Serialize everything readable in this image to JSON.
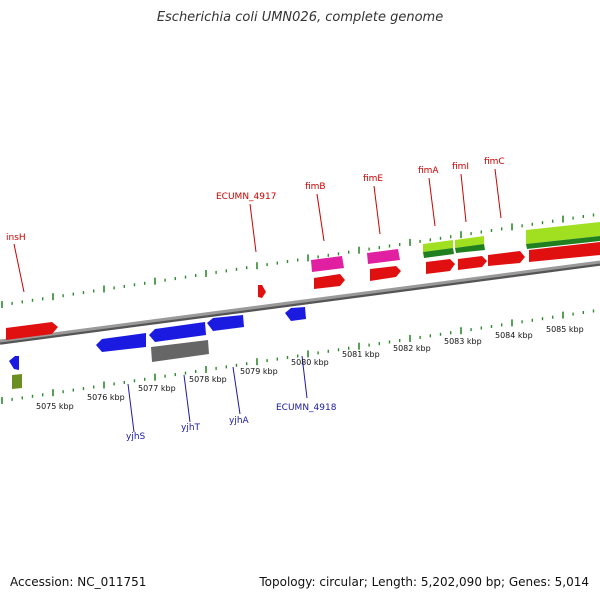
{
  "title": "Escherichia coli UMN026, complete genome",
  "footer": {
    "accession": "Accession: NC_011751",
    "summary": "Topology: circular; Length: 5,202,090 bp; Genes: 5,014"
  },
  "colors": {
    "backbone": "#8a8a8a",
    "tick": "#2e8b2e",
    "plus_label": "#cc0000",
    "minus_label": "#1a1aa6",
    "red_gene": "#e01010",
    "blue_gene": "#1a1ae0",
    "pink_gene": "#e020a0",
    "gray_gene": "#666666",
    "lime_gene": "#a0e020",
    "green_gene": "#208020",
    "olive_gene": "#6b8e23"
  },
  "scale_labels": [
    "5075 kbp",
    "5076 kbp",
    "5077 kbp",
    "5078 kbp",
    "5079 kbp",
    "5080 kbp",
    "5081 kbp",
    "5082 kbp",
    "5083 kbp",
    "5084 kbp",
    "5085 kbp"
  ],
  "gene_labels_plus": [
    "insH",
    "ECUMN_4917",
    "fimB",
    "fimE",
    "fimA",
    "fimI",
    "fimC"
  ],
  "gene_labels_minus": [
    "yjhS",
    "yjhT",
    "yjhA",
    "ECUMN_4918"
  ]
}
